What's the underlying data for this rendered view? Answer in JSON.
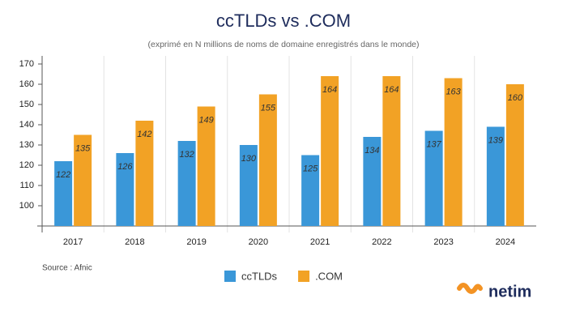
{
  "chart_data": {
    "type": "bar",
    "title": "ccTLDs vs .COM",
    "subtitle": "(exprimé en N millions de noms de domaine enregistrés dans le monde)",
    "categories": [
      "2017",
      "2018",
      "2019",
      "2020",
      "2021",
      "2022",
      "2023",
      "2024"
    ],
    "series": [
      {
        "name": "ccTLDs",
        "color": "#3a97d8",
        "values": [
          122,
          126,
          132,
          130,
          125,
          134,
          137,
          139
        ]
      },
      {
        "name": ".COM",
        "color": "#f2a225",
        "values": [
          135,
          142,
          149,
          155,
          164,
          164,
          163,
          160
        ]
      }
    ],
    "ylim": [
      90,
      174
    ],
    "yticks": [
      100,
      110,
      120,
      130,
      140,
      150,
      160,
      170
    ],
    "grid": false,
    "legend": "bottom",
    "source": "Source : Afnic",
    "brand": "netim"
  }
}
